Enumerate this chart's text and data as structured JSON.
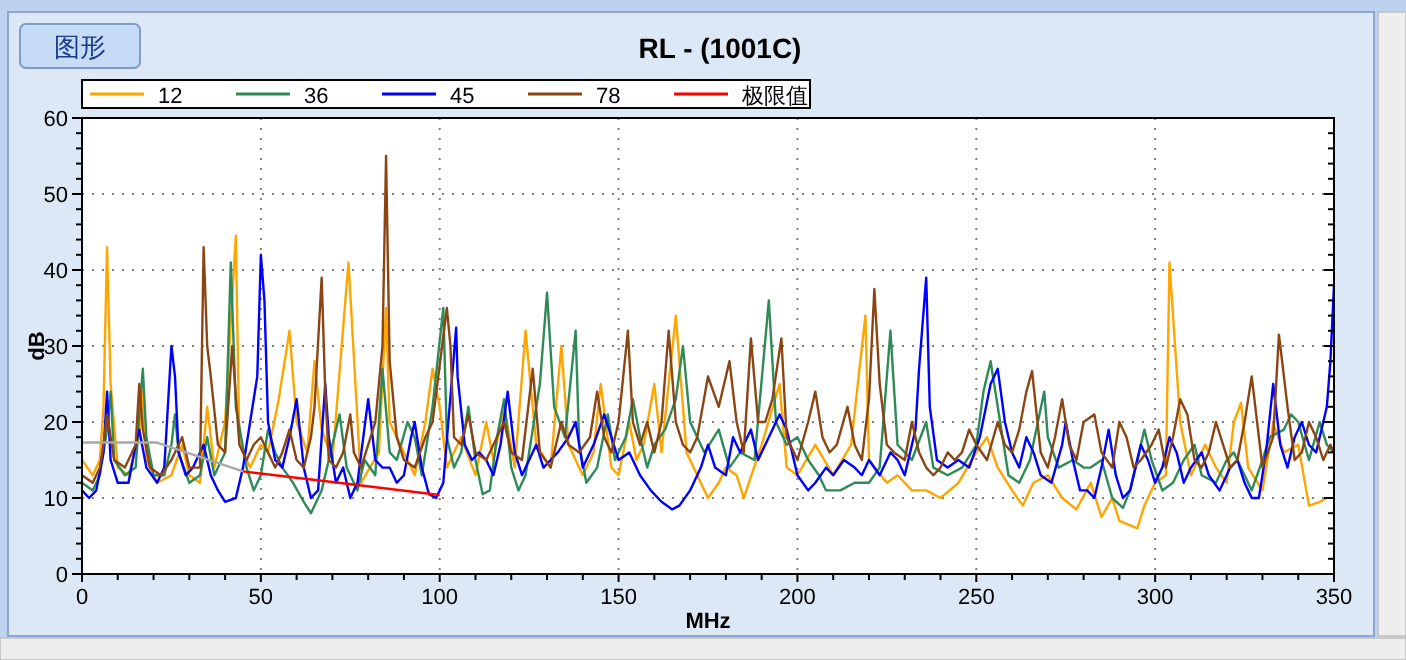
{
  "chart_data": {
    "type": "line",
    "title": "RL - (1001C)",
    "xlabel": "MHz",
    "ylabel": "dB",
    "annotations": [
      "图形"
    ],
    "xlim": [
      0,
      350
    ],
    "ylim": [
      0,
      60
    ],
    "xticks": [
      0,
      50,
      100,
      150,
      200,
      250,
      300,
      350
    ],
    "yticks": [
      0,
      10,
      20,
      30,
      40,
      50,
      60
    ],
    "grid": true,
    "legend": "top",
    "series": [
      {
        "name": "12",
        "color": "#ffa500",
        "x": [
          0,
          3,
          5,
          6,
          7,
          8,
          10,
          13,
          16,
          17,
          18,
          21,
          25,
          28,
          30,
          33,
          35,
          37,
          40,
          43,
          44,
          47,
          50,
          52,
          55,
          58,
          60,
          63,
          65,
          67,
          70,
          74.5,
          78,
          83,
          85,
          86,
          90,
          93,
          96,
          98,
          100,
          102,
          106,
          110,
          113,
          115,
          118,
          121,
          124,
          127,
          131,
          134,
          136,
          140,
          143,
          145,
          148,
          150,
          153,
          155,
          157,
          160,
          162,
          166,
          169,
          172,
          175,
          178,
          180,
          183,
          185,
          190,
          195,
          197,
          200,
          205,
          210,
          215,
          219,
          220,
          225,
          228,
          232,
          236,
          240,
          245,
          250,
          253,
          256,
          260,
          263,
          266,
          270,
          274,
          278,
          282,
          285,
          288,
          290,
          295,
          297,
          300,
          303,
          304,
          307,
          310,
          314,
          317,
          320,
          322,
          324,
          326,
          330,
          333,
          336,
          340,
          343,
          346,
          348
        ],
        "values": [
          15,
          13,
          15,
          22,
          43,
          25,
          14,
          13,
          18,
          24,
          15,
          12,
          13,
          17,
          13,
          12,
          22,
          14,
          20,
          44.5,
          17,
          14,
          17,
          16,
          23,
          32,
          20,
          16,
          28,
          19,
          15,
          41,
          12,
          16,
          35,
          20,
          16,
          13,
          20,
          27,
          22,
          14,
          18,
          13,
          20,
          15,
          22,
          14,
          32,
          17,
          14,
          30,
          17,
          13,
          16,
          25,
          14,
          13,
          20,
          15,
          17,
          25,
          16,
          34,
          16,
          13,
          10,
          12,
          14,
          13,
          10,
          17,
          25,
          14,
          13,
          17,
          13,
          17,
          34,
          15,
          12,
          13,
          11,
          11,
          10,
          12,
          16,
          18,
          14,
          11,
          9,
          12,
          13,
          10,
          8.5,
          12,
          7.5,
          10,
          7,
          6,
          9,
          12,
          13,
          41,
          20,
          13,
          17,
          14,
          12,
          20,
          22.5,
          14,
          11,
          19.8,
          16,
          17,
          9,
          9.5,
          10
        ]
      },
      {
        "name": "36",
        "color": "#2e8b57",
        "x": [
          0,
          3,
          5,
          7,
          8,
          9,
          12,
          15,
          16,
          17,
          18,
          20,
          23,
          25,
          26,
          27,
          30,
          33,
          35,
          37,
          40,
          41.6,
          43,
          46,
          48,
          50,
          52,
          54,
          56,
          59,
          62,
          64,
          67,
          70,
          72,
          74,
          77,
          79,
          82,
          84,
          86,
          88,
          91,
          93,
          95,
          98,
          101,
          102,
          104,
          106,
          108,
          110,
          112,
          114,
          116,
          118,
          120,
          122,
          124,
          126,
          128,
          130,
          132,
          135,
          138,
          139,
          141,
          144,
          147,
          149,
          152,
          154,
          156,
          158,
          160,
          163,
          166,
          168,
          170,
          174,
          178,
          181,
          184,
          188,
          192,
          194,
          197,
          200,
          203,
          206,
          208,
          212,
          216,
          220,
          223,
          226,
          228,
          232,
          236,
          238,
          242,
          246,
          250,
          252,
          254,
          256,
          259,
          262,
          265,
          269,
          270,
          273,
          277,
          280,
          282,
          285,
          288,
          291,
          293,
          297,
          299,
          302,
          305,
          308,
          311,
          313,
          317,
          320,
          322,
          325,
          327,
          330,
          332,
          336,
          338,
          340,
          343,
          346,
          348,
          350
        ],
        "values": [
          12,
          11,
          13,
          19,
          24,
          15,
          13,
          14,
          21,
          27,
          18,
          13,
          13,
          17,
          21,
          16,
          12,
          13,
          18,
          13,
          16,
          41,
          22,
          14,
          11,
          13,
          19,
          16,
          14,
          12,
          9.5,
          8,
          11,
          17,
          21,
          14,
          11,
          15,
          13,
          27,
          16,
          15,
          20,
          18,
          13,
          22,
          35,
          18,
          14,
          16,
          22,
          15,
          10.5,
          11,
          18,
          23,
          14,
          11,
          13,
          19,
          25,
          37,
          22,
          18,
          32,
          17,
          12,
          14,
          21,
          15,
          18,
          23,
          18,
          14,
          17,
          19,
          23,
          30,
          20,
          16,
          19,
          14,
          16,
          15,
          36,
          20,
          17,
          18,
          15,
          13,
          11,
          11,
          12,
          12,
          14,
          32,
          17,
          15,
          20,
          14,
          13,
          14,
          17,
          24,
          28,
          22,
          13,
          12,
          15,
          24,
          18,
          14,
          15,
          14,
          14,
          15,
          10,
          8.7,
          11,
          19,
          15,
          11,
          12,
          15,
          17,
          13,
          12,
          15,
          16,
          13,
          11,
          15,
          18,
          19,
          21,
          20,
          15,
          20,
          17,
          16
        ]
      },
      {
        "name": "45",
        "color": "#0000ff",
        "x": [
          0,
          2,
          4,
          6,
          7,
          8,
          10,
          13,
          15,
          16,
          18,
          21,
          23,
          25,
          26,
          27,
          29,
          31,
          34,
          36,
          38,
          40,
          43,
          45,
          47,
          49,
          50,
          51,
          52,
          54,
          56,
          58,
          60,
          62,
          64,
          66,
          68,
          69,
          71,
          73,
          75,
          77,
          80,
          82,
          84,
          86,
          88,
          90,
          92,
          93,
          95,
          97,
          99,
          101,
          104.6,
          105,
          107,
          109,
          111,
          113,
          115,
          117,
          119,
          121,
          123,
          125,
          127,
          129,
          131,
          133,
          136,
          138,
          140,
          143,
          146,
          148,
          150,
          153,
          156,
          159,
          162,
          165,
          167,
          170,
          173,
          175,
          177,
          180,
          182,
          184,
          187,
          189,
          192,
          195,
          197,
          200,
          203,
          205,
          208,
          210,
          213,
          216,
          218,
          220,
          223,
          226,
          228,
          230,
          233,
          234,
          236,
          237,
          239,
          242,
          245,
          248,
          251,
          254,
          256,
          258,
          260,
          262,
          264,
          266,
          268,
          271,
          274,
          275,
          277,
          279,
          281,
          283,
          285,
          287,
          289,
          291,
          293,
          296,
          298,
          300,
          302,
          304,
          306,
          308,
          310,
          313,
          315,
          318,
          321,
          323,
          325,
          327,
          329,
          331,
          333,
          335,
          337,
          339,
          341,
          343,
          345,
          348,
          349,
          350
        ],
        "values": [
          11,
          10,
          11,
          16,
          24,
          15,
          12,
          12,
          17,
          19,
          14,
          12,
          14,
          30,
          26,
          16,
          13,
          14,
          17,
          13,
          11,
          9.5,
          10,
          14,
          20,
          26,
          42,
          36,
          20,
          15,
          14,
          18,
          23,
          14,
          10,
          11,
          25,
          18,
          12,
          14,
          10,
          12,
          23,
          15,
          14,
          14,
          12,
          13,
          18,
          20,
          14,
          10.5,
          10,
          12,
          32.4,
          26,
          17,
          15,
          16,
          15,
          13,
          17,
          24,
          16,
          13,
          15,
          17,
          14,
          15,
          16,
          18,
          20,
          14,
          17,
          21,
          18,
          15,
          16,
          13,
          11,
          9.5,
          8.5,
          9,
          11,
          14,
          17,
          14,
          13,
          18,
          16,
          19,
          15,
          18,
          21,
          19,
          13,
          11,
          12,
          14,
          13,
          15,
          14,
          13,
          15,
          13,
          16,
          15,
          13,
          19,
          27,
          39,
          22,
          15,
          14,
          15,
          14,
          18,
          25,
          27,
          20,
          16,
          14,
          18,
          16,
          13,
          12,
          17,
          20,
          15,
          11,
          11,
          10,
          14,
          19,
          13,
          10,
          11,
          17,
          15,
          12,
          14,
          18,
          16,
          12,
          14,
          16,
          13,
          11,
          14,
          15,
          12,
          10,
          10,
          16,
          25,
          17,
          14,
          18,
          20,
          17,
          16,
          22,
          28,
          38
        ]
      },
      {
        "name": "78",
        "color": "#8b4513",
        "x": [
          0,
          3,
          5,
          6,
          7,
          9,
          12,
          15,
          16,
          17,
          19,
          22,
          25,
          28,
          30,
          33,
          34,
          35,
          36,
          38,
          40,
          42,
          44,
          46,
          48,
          50,
          52,
          54,
          56,
          58,
          60,
          62,
          64,
          65,
          67,
          68,
          69,
          71,
          73,
          75,
          76,
          78,
          80,
          82,
          84,
          85,
          86,
          88,
          90,
          93,
          96,
          98,
          102,
          103,
          104,
          106,
          108,
          110,
          113,
          116,
          118,
          120,
          123,
          126,
          128,
          131,
          134,
          136,
          139,
          142,
          144,
          146,
          148,
          150,
          152.6,
          154,
          156,
          158,
          160,
          162,
          164,
          166,
          168,
          170,
          172,
          175,
          178,
          181,
          183,
          185,
          187,
          189,
          191,
          193,
          195.5,
          197,
          200,
          203,
          205,
          207,
          209,
          211,
          214,
          216,
          218,
          220,
          221.5,
          223,
          225,
          227,
          230,
          232,
          234,
          236,
          238,
          240,
          242,
          244,
          246,
          248,
          250,
          253,
          256,
          258,
          260,
          262,
          264,
          265.6,
          268,
          270,
          272,
          274,
          276,
          278,
          280,
          283,
          285,
          288,
          290,
          292,
          294,
          296,
          299,
          301,
          303,
          305,
          307,
          309,
          311,
          313,
          315,
          317,
          319,
          321,
          323,
          325,
          327,
          328,
          330,
          333,
          334.6,
          336,
          337,
          339,
          341,
          343,
          345,
          347,
          349,
          350
        ],
        "values": [
          13,
          12,
          14,
          17,
          21,
          15,
          14,
          17,
          25,
          19,
          14,
          13,
          15,
          18,
          14,
          14,
          43,
          30,
          26,
          17,
          16,
          30,
          17,
          15,
          17,
          18,
          16,
          14,
          16,
          19,
          15,
          14,
          18,
          22,
          39,
          24,
          15,
          14,
          16,
          21,
          16,
          14,
          17,
          20,
          30,
          55,
          28,
          18,
          15,
          14,
          18,
          20,
          35,
          30,
          18,
          17,
          21,
          16,
          15,
          18,
          20,
          16,
          15,
          27,
          16,
          14,
          20,
          17,
          16,
          18,
          24,
          18,
          16,
          20,
          32,
          20,
          17,
          20,
          16,
          20,
          32,
          20,
          17,
          16,
          18,
          26,
          22,
          28,
          20,
          16,
          31,
          20,
          20,
          23,
          31,
          18,
          15,
          20,
          24,
          18,
          16,
          17,
          22,
          17,
          15,
          23,
          37.5,
          25,
          17,
          16,
          15,
          20,
          16,
          14,
          13,
          14,
          16,
          15,
          16,
          19,
          17,
          15,
          20,
          17,
          16,
          19,
          24,
          26.7,
          16,
          14,
          18,
          23,
          17,
          15,
          20,
          21,
          16,
          14,
          20,
          18,
          14,
          15,
          17,
          19,
          14,
          18,
          23,
          21,
          15,
          14,
          16,
          20,
          17,
          14,
          15,
          20,
          26,
          22,
          14,
          18,
          31.5,
          26,
          22,
          15,
          16,
          20,
          18,
          15,
          17,
          16
        ]
      },
      {
        "name": "极限值",
        "color": "#ff0000",
        "x": [
          45,
          70,
          100
        ],
        "values": [
          13.5,
          12.1,
          10.4
        ]
      },
      {
        "color": "#a9a9a9",
        "x": [
          0,
          21,
          45
        ],
        "values": [
          17.3,
          17.3,
          13.5
        ]
      }
    ]
  }
}
